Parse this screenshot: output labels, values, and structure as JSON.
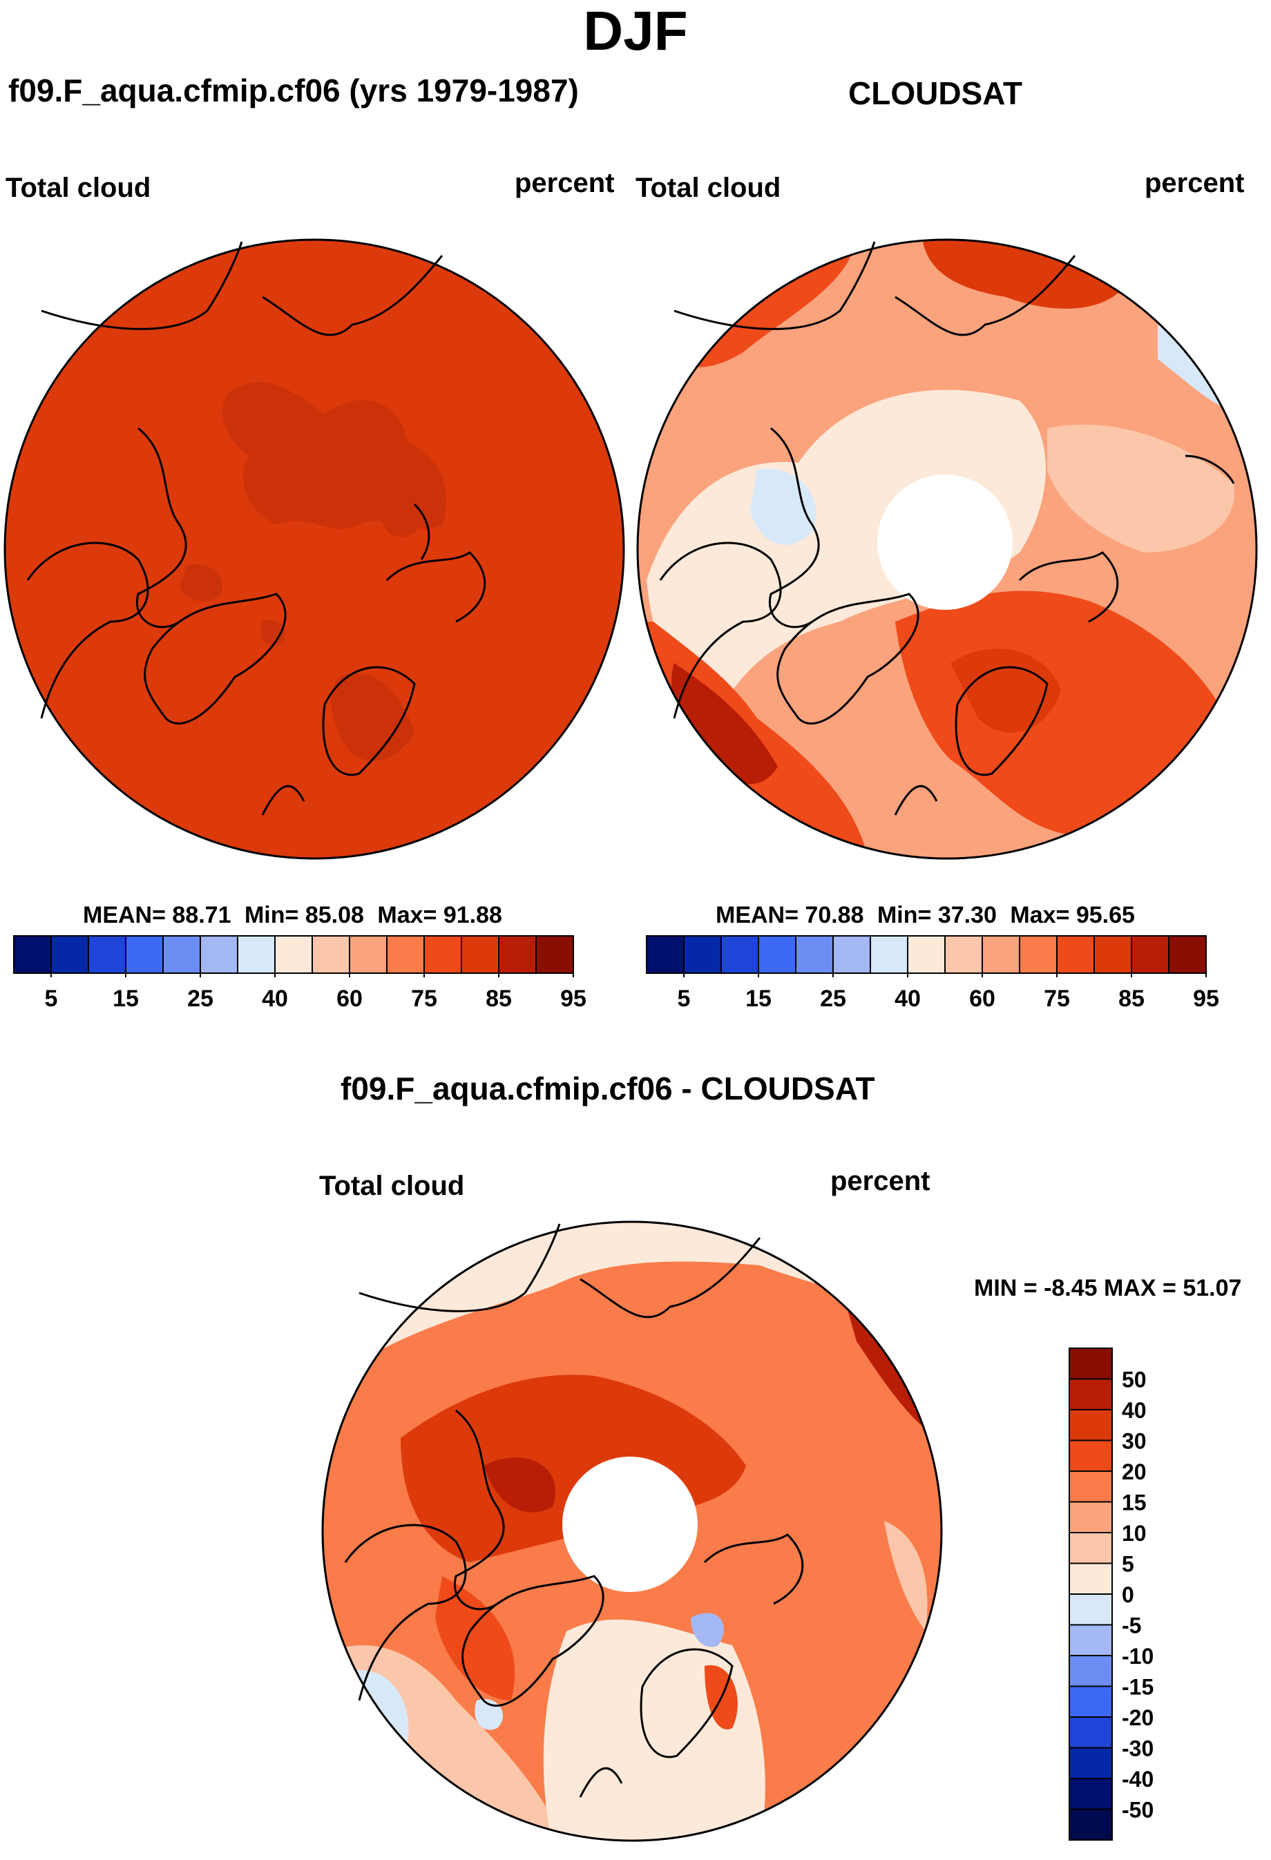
{
  "title": "DJF",
  "panels": [
    {
      "id": "model",
      "case_title": "f09.F_aqua.cfmip.cf06 (yrs 1979-1987)",
      "left_label": "Total cloud",
      "right_label": "percent",
      "stats": {
        "mean_label": "MEAN=",
        "mean": "88.71",
        "min_label": "Min=",
        "min": "85.08",
        "max_label": "Max=",
        "max": "91.88"
      }
    },
    {
      "id": "obs",
      "case_title": "CLOUDSAT",
      "left_label": "Total cloud",
      "right_label": "percent",
      "stats": {
        "mean_label": "MEAN=",
        "mean": "70.88",
        "min_label": "Min=",
        "min": "37.30",
        "max_label": "Max=",
        "max": "95.65"
      }
    },
    {
      "id": "diff",
      "case_title": "f09.F_aqua.cfmip.cf06 - CLOUDSAT",
      "left_label": "Total cloud",
      "right_label": "percent",
      "stats": {
        "text": "MIN =  -8.45 MAX =  51.07"
      }
    }
  ],
  "chart_data": [
    {
      "type": "heatmap",
      "projection": "north polar stereographic",
      "title": "f09.F_aqua.cfmip.cf06 (yrs 1979-1987)",
      "variable": "Total cloud",
      "units": "percent",
      "mean": 88.71,
      "min": 85.08,
      "max": 91.88,
      "field_summary": "Nearly uniform 85-90 % cloud cover everywhere, slightly higher (90-95 %) over the Arctic Ocean and northern Russia",
      "colorbar": {
        "ticks": [
          "5",
          "15",
          "25",
          "40",
          "60",
          "75",
          "85",
          "95"
        ],
        "colors": [
          "#000f6e",
          "#0528a6",
          "#1e45d7",
          "#3c69f4",
          "#6c8ef4",
          "#a3b8f4",
          "#d7e8f8",
          "#fde9d9",
          "#fcc6aa",
          "#fba37d",
          "#f97c4a",
          "#ef4a1a",
          "#dd3a0b",
          "#b81e05",
          "#8a0e02"
        ]
      }
    },
    {
      "type": "heatmap",
      "projection": "north polar stereographic",
      "title": "CLOUDSAT",
      "variable": "Total cloud",
      "units": "percent",
      "mean": 70.88,
      "min": 37.3,
      "max": 95.65,
      "field_summary": "High cloud (85-95 %) over North Atlantic and North Pacific storm tracks, low cloud (40-60 %) over the Canadian Arctic, Siberia and the pole (no data north of ~82N)",
      "colorbar": {
        "ticks": [
          "5",
          "15",
          "25",
          "40",
          "60",
          "75",
          "85",
          "95"
        ],
        "colors": [
          "#000f6e",
          "#0528a6",
          "#1e45d7",
          "#3c69f4",
          "#6c8ef4",
          "#a3b8f4",
          "#d7e8f8",
          "#fde9d9",
          "#fcc6aa",
          "#fba37d",
          "#f97c4a",
          "#ef4a1a",
          "#dd3a0b",
          "#b81e05",
          "#8a0e02"
        ]
      }
    },
    {
      "type": "heatmap",
      "projection": "north polar stereographic",
      "title": "f09.F_aqua.cfmip.cf06 - CLOUDSAT",
      "variable": "Total cloud",
      "units": "percent",
      "min": -8.45,
      "max": 51.07,
      "field_summary": "Positive bias 20-40 % over the Arctic and continents, near zero (-5 to 5 %) over the storm track oceans",
      "colorbar": {
        "ticks": [
          "50",
          "40",
          "30",
          "20",
          "15",
          "10",
          "5",
          "0",
          "-5",
          "-10",
          "-15",
          "-20",
          "-30",
          "-40",
          "-50"
        ],
        "colors": [
          "#8a0e02",
          "#b81e05",
          "#dd3a0b",
          "#ef4a1a",
          "#f97c4a",
          "#fba37d",
          "#fcc6aa",
          "#fde9d9",
          "#d7e8f8",
          "#a3b8f4",
          "#6c8ef4",
          "#3c69f4",
          "#1e45d7",
          "#0528a6",
          "#000f6e",
          "#000a4e"
        ]
      }
    }
  ]
}
